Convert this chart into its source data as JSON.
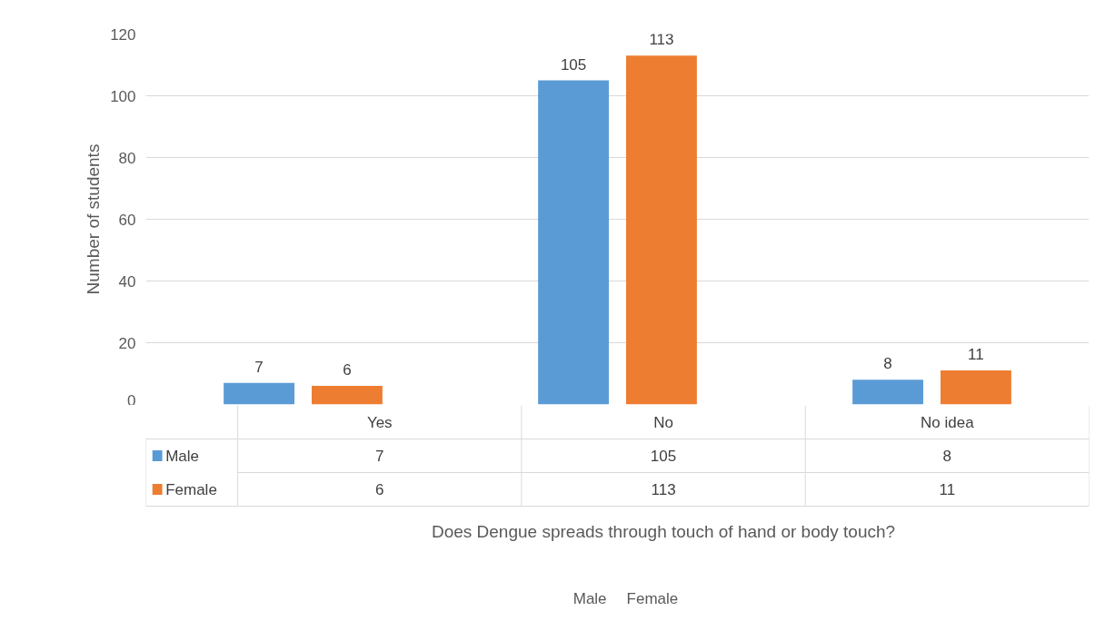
{
  "chart_data": {
    "type": "bar",
    "categories": [
      "Yes",
      "No",
      "No idea"
    ],
    "series": [
      {
        "name": "Male",
        "color": "#5b9bd5",
        "values": [
          7,
          105,
          8
        ]
      },
      {
        "name": "Female",
        "color": "#ed7d31",
        "values": [
          6,
          113,
          11
        ]
      }
    ],
    "ylabel": "Number of students",
    "annotations": [
      "Does Dengue spreads through touch of hand or body touch?",
      "7",
      "105",
      "8",
      "6",
      "113",
      "11"
    ],
    "ylim": [
      0,
      120
    ],
    "yticks": [
      0,
      20,
      40,
      60,
      80,
      100,
      120
    ],
    "grid": "y",
    "data_labels": true,
    "legend": "bottom"
  }
}
